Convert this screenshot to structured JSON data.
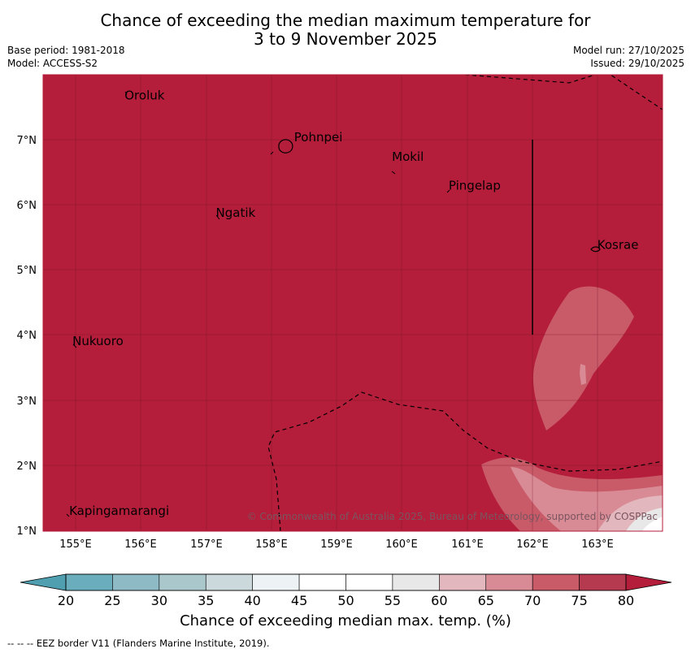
{
  "title_line1": "Chance of exceeding the median maximum temperature for",
  "title_line2": "3 to 9 November 2025",
  "meta": {
    "base_period": "Base period: 1981-2018",
    "model": "Model: ACCESS-S2",
    "model_run": "Model run: 27/10/2025",
    "issued": "Issued: 29/10/2025"
  },
  "map": {
    "lon_range": [
      154.5,
      164.0
    ],
    "lat_range": [
      1.0,
      8.0
    ],
    "fill_color": "#b41e3a",
    "lat_labels": [
      "1°N",
      "2°N",
      "3°N",
      "4°N",
      "5°N",
      "6°N",
      "7°N"
    ],
    "lon_labels": [
      "155°E",
      "156°E",
      "157°E",
      "158°E",
      "159°E",
      "160°E",
      "161°E",
      "162°E",
      "163°E"
    ],
    "places": [
      {
        "name": "Oroluk",
        "lon": 155.75,
        "lat": 7.62
      },
      {
        "name": "Pohnpei",
        "lon": 158.35,
        "lat": 6.98
      },
      {
        "name": "Mokil",
        "lon": 159.85,
        "lat": 6.68
      },
      {
        "name": "Pingelap",
        "lon": 160.72,
        "lat": 6.24
      },
      {
        "name": "Ngatik",
        "lon": 157.15,
        "lat": 5.82
      },
      {
        "name": "Kosrae",
        "lon": 163.0,
        "lat": 5.33
      },
      {
        "name": "Nukuoro",
        "lon": 154.95,
        "lat": 3.85
      },
      {
        "name": "Kapingamarangi",
        "lon": 154.9,
        "lat": 1.25
      }
    ],
    "copyright": "© Commonwealth of Australia 2025, Bureau of Meteorology, supported by COSPPac"
  },
  "colorbar": {
    "ticks": [
      "20",
      "25",
      "30",
      "35",
      "40",
      "45",
      "50",
      "55",
      "60",
      "65",
      "70",
      "75",
      "80"
    ],
    "colors": [
      "#6aaebd",
      "#8dbac5",
      "#aac8cc",
      "#cbd9dc",
      "#edf2f4",
      "#ffffff",
      "#ffffff",
      "#e8e8e8",
      "#e2b7bd",
      "#d88b95",
      "#c95a68",
      "#b53a50"
    ],
    "low_color": "#4f9fb0",
    "high_color": "#b41e3a",
    "title": "Chance of exceeding median max. temp. (%)"
  },
  "footnote": "--  --  -- EEZ border V11 (Flanders Marine Institute, 2019)."
}
